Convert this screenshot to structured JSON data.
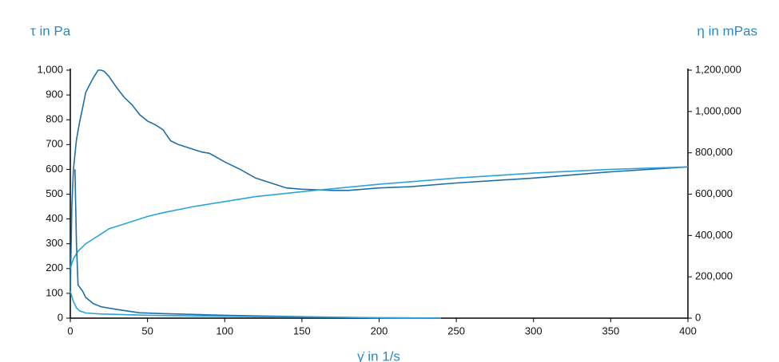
{
  "chart_data": {
    "type": "line",
    "y_label": "τ in Pa",
    "y2_label": "η in mPas",
    "x_label": "γ̇ in 1/s",
    "xlim": [
      0,
      400
    ],
    "xticks": [
      0,
      50,
      100,
      150,
      200,
      250,
      300,
      350,
      400
    ],
    "ylim": [
      0,
      1000
    ],
    "yticks": [
      0,
      100,
      200,
      300,
      400,
      500,
      600,
      700,
      800,
      900,
      {
        "value": 1000,
        "label": "1,000"
      }
    ],
    "y2lim": [
      0,
      1200000
    ],
    "y2ticks": [
      0,
      {
        "value": 200000,
        "label": "200,000"
      },
      {
        "value": 400000,
        "label": "400,000"
      },
      {
        "value": 600000,
        "label": "600,000"
      },
      {
        "value": 800000,
        "label": "800,000"
      },
      {
        "value": 1000000,
        "label": "1,000,000"
      },
      {
        "value": 1200000,
        "label": "1,200,000"
      }
    ],
    "series": [
      {
        "color": "#1f6fa8",
        "x": [
          0,
          1,
          2,
          4,
          6,
          8,
          10,
          12,
          15,
          18,
          20,
          22,
          25,
          30,
          35,
          40,
          45,
          50,
          55,
          60,
          65,
          70,
          80,
          85,
          90,
          100,
          110,
          120,
          130,
          140,
          150,
          170,
          180,
          200,
          220,
          250,
          300,
          350,
          400
        ],
        "values": [
          100,
          450,
          600,
          720,
          790,
          850,
          910,
          935,
          970,
          1000,
          1000,
          995,
          975,
          930,
          890,
          860,
          820,
          795,
          780,
          760,
          715,
          700,
          680,
          670,
          665,
          630,
          600,
          565,
          545,
          525,
          520,
          515,
          515,
          525,
          530,
          545,
          565,
          590,
          610
        ]
      },
      {
        "color": "#2ba3dc",
        "x": [
          0,
          2,
          5,
          10,
          15,
          20,
          25,
          30,
          40,
          50,
          60,
          80,
          100,
          120,
          150,
          200,
          250,
          300,
          350,
          400
        ],
        "values": [
          200,
          240,
          270,
          300,
          320,
          340,
          360,
          370,
          390,
          410,
          425,
          450,
          470,
          490,
          510,
          540,
          565,
          585,
          600,
          610
        ]
      },
      {
        "color": "#1f6fa8",
        "axis": "y2",
        "x": [
          3,
          4,
          5,
          8,
          10,
          15,
          20,
          30,
          45,
          60,
          100,
          150,
          200,
          240
        ],
        "values": [
          720000,
          360000,
          160000,
          130000,
          100000,
          70000,
          55000,
          42000,
          26000,
          22000,
          14000,
          7000,
          2000,
          0
        ]
      },
      {
        "color": "#2ba3dc",
        "axis": "y2",
        "x": [
          0,
          2,
          4,
          6,
          10,
          20,
          30,
          50,
          100,
          150,
          200,
          240
        ],
        "values": [
          130000,
          80000,
          50000,
          35000,
          25000,
          20000,
          18000,
          14000,
          9000,
          5000,
          2000,
          0
        ]
      }
    ]
  }
}
